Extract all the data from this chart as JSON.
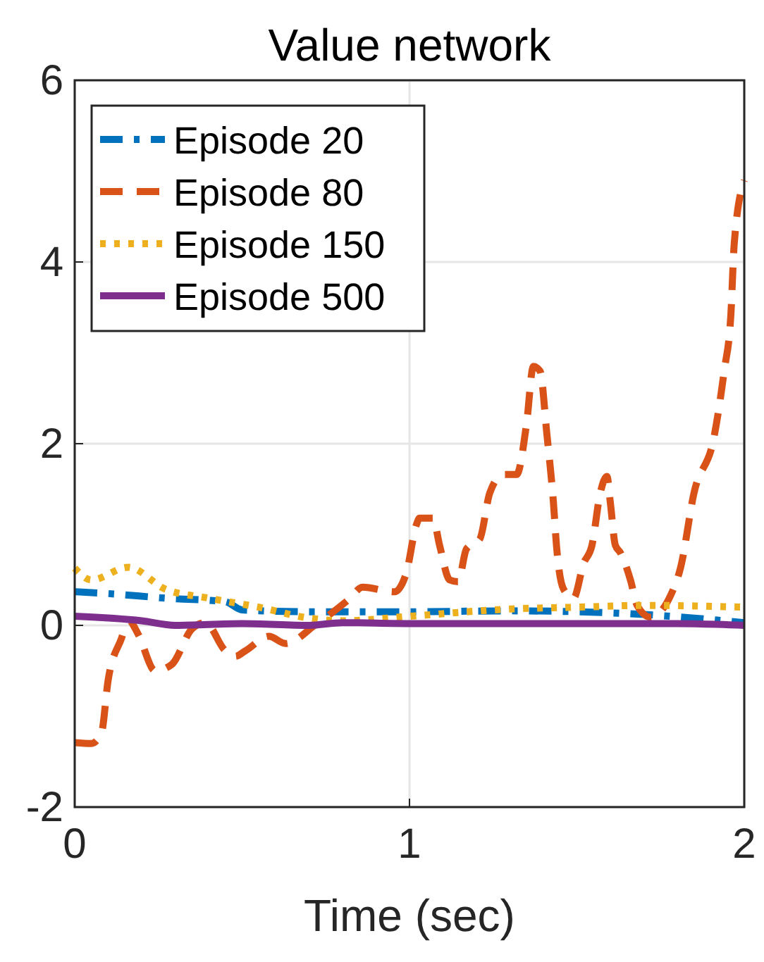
{
  "chart_data": {
    "type": "line",
    "title": "Value network",
    "xlabel": "Time (sec)",
    "xlim": [
      0,
      2
    ],
    "ylim": [
      -2,
      6
    ],
    "xticks": [
      0,
      1,
      2
    ],
    "yticks": [
      -2,
      0,
      2,
      4,
      6
    ],
    "grid": true,
    "legend": "top left",
    "series": [
      {
        "name": "Episode 20",
        "color": "#0072bd",
        "line_style": "dashdot",
        "x": [
          0,
          0.1,
          0.27,
          0.45,
          0.5,
          0.7,
          1.0,
          1.3,
          1.5,
          1.7,
          1.85,
          2.0
        ],
        "values": [
          0.37,
          0.35,
          0.3,
          0.26,
          0.17,
          0.15,
          0.15,
          0.16,
          0.15,
          0.12,
          0.08,
          0.03
        ]
      },
      {
        "name": "Episode 80",
        "color": "#d95319",
        "line_style": "dashed",
        "x": [
          0,
          0.05,
          0.08,
          0.1,
          0.14,
          0.16,
          0.19,
          0.24,
          0.29,
          0.35,
          0.39,
          0.45,
          0.48,
          0.51,
          0.58,
          0.63,
          0.72,
          0.82,
          0.86,
          0.955,
          0.99,
          1.02,
          1.03,
          1.07,
          1.09,
          1.12,
          1.145,
          1.17,
          1.21,
          1.24,
          1.28,
          1.32,
          1.35,
          1.37,
          1.39,
          1.41,
          1.43,
          1.44,
          1.46,
          1.49,
          1.52,
          1.545,
          1.57,
          1.59,
          1.6,
          1.615,
          1.63,
          1.66,
          1.68,
          1.72,
          1.78,
          1.81,
          1.85,
          1.91,
          1.94,
          1.96,
          1.97,
          2.0
        ],
        "values": [
          -1.29,
          -1.3,
          -1.18,
          -0.6,
          -0.14,
          0.06,
          -0.1,
          -0.5,
          -0.43,
          -0.04,
          0.03,
          -0.28,
          -0.34,
          -0.28,
          -0.12,
          -0.2,
          0.01,
          0.29,
          0.42,
          0.37,
          0.57,
          1.1,
          1.18,
          1.18,
          0.88,
          0.5,
          0.48,
          0.84,
          0.95,
          1.46,
          1.66,
          1.66,
          2.23,
          2.85,
          2.8,
          2.12,
          1.35,
          0.84,
          0.4,
          0.3,
          0.68,
          0.88,
          1.46,
          1.64,
          1.35,
          0.88,
          0.8,
          0.5,
          0.22,
          0.09,
          0.33,
          0.64,
          1.46,
          2.08,
          2.8,
          3.42,
          4.2,
          4.9
        ]
      },
      {
        "name": "Episode 150",
        "color": "#edb120",
        "line_style": "dotted",
        "x": [
          0,
          0.05,
          0.16,
          0.27,
          0.4,
          0.55,
          0.7,
          0.8,
          1.0,
          1.3,
          1.5,
          1.7,
          2.0
        ],
        "values": [
          0.63,
          0.5,
          0.64,
          0.4,
          0.3,
          0.2,
          0.08,
          0.05,
          0.1,
          0.18,
          0.2,
          0.22,
          0.2
        ]
      },
      {
        "name": "Episode 500",
        "color": "#7e2f8e",
        "line_style": "solid",
        "x": [
          0,
          0.2,
          0.3,
          0.5,
          0.7,
          0.8,
          1.0,
          1.4,
          1.8,
          2.0
        ],
        "values": [
          0.1,
          0.05,
          0.0,
          0.02,
          0.0,
          0.03,
          0.02,
          0.02,
          0.02,
          0.0
        ]
      }
    ]
  }
}
